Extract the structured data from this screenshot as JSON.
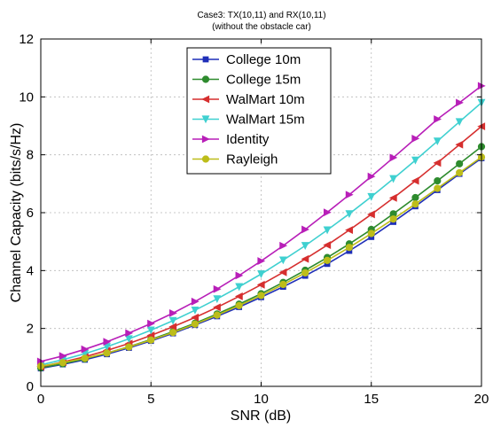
{
  "chart_data": {
    "type": "line",
    "title": "Case3: TX(10,11) and RX(10,11)",
    "subtitle": "(without the obstacle car)",
    "xlabel": "SNR (dB)",
    "ylabel": "Channel Capacity (bits/s/Hz)",
    "xlim": [
      0,
      20
    ],
    "ylim": [
      0,
      12
    ],
    "xticks": [
      "0",
      "5",
      "10",
      "15",
      "20"
    ],
    "yticks": [
      "0",
      "2",
      "4",
      "6",
      "8",
      "10",
      "12"
    ],
    "grid": true,
    "legend_position": "top-center",
    "x": [
      0,
      1,
      2,
      3,
      4,
      5,
      6,
      7,
      8,
      9,
      10,
      11,
      12,
      13,
      14,
      15,
      16,
      17,
      18,
      19,
      20
    ],
    "series": [
      {
        "name": "College 10m",
        "color": "#1f2fb8",
        "marker": "square",
        "values": [
          0.62,
          0.76,
          0.92,
          1.11,
          1.33,
          1.57,
          1.83,
          2.12,
          2.42,
          2.74,
          3.08,
          3.44,
          3.82,
          4.23,
          4.68,
          5.16,
          5.68,
          6.22,
          6.78,
          7.34,
          7.88
        ]
      },
      {
        "name": "College 15m",
        "color": "#2e8b2e",
        "marker": "circle",
        "values": [
          0.64,
          0.78,
          0.95,
          1.15,
          1.37,
          1.62,
          1.89,
          2.18,
          2.5,
          2.84,
          3.2,
          3.59,
          4.01,
          4.45,
          4.92,
          5.42,
          5.96,
          6.52,
          7.1,
          7.69,
          8.28
        ]
      },
      {
        "name": "WalMart 10m",
        "color": "#d62f2f",
        "marker": "triangle-left",
        "values": [
          0.68,
          0.84,
          1.02,
          1.24,
          1.48,
          1.76,
          2.06,
          2.38,
          2.73,
          3.11,
          3.51,
          3.94,
          4.4,
          4.88,
          5.4,
          5.94,
          6.51,
          7.1,
          7.72,
          8.35,
          8.98
        ]
      },
      {
        "name": "WalMart 15m",
        "color": "#3fd0d0",
        "marker": "triangle-down",
        "values": [
          0.74,
          0.92,
          1.13,
          1.37,
          1.64,
          1.94,
          2.27,
          2.63,
          3.02,
          3.44,
          3.88,
          4.36,
          4.86,
          5.4,
          5.96,
          6.55,
          7.17,
          7.81,
          8.47,
          9.14,
          9.8
        ]
      },
      {
        "name": "Identity",
        "color": "#b81fb8",
        "marker": "triangle-right",
        "values": [
          0.86,
          1.05,
          1.28,
          1.54,
          1.84,
          2.17,
          2.53,
          2.93,
          3.36,
          3.83,
          4.33,
          4.86,
          5.42,
          6.01,
          6.62,
          7.25,
          7.9,
          8.56,
          9.23,
          9.8,
          10.38
        ]
      },
      {
        "name": "Rayleigh",
        "color": "#bdbd1a",
        "marker": "circle",
        "values": [
          0.7,
          0.82,
          0.97,
          1.15,
          1.36,
          1.6,
          1.86,
          2.15,
          2.46,
          2.79,
          3.14,
          3.52,
          3.92,
          4.35,
          4.8,
          5.28,
          5.78,
          6.3,
          6.84,
          7.38,
          7.92
        ]
      }
    ]
  }
}
